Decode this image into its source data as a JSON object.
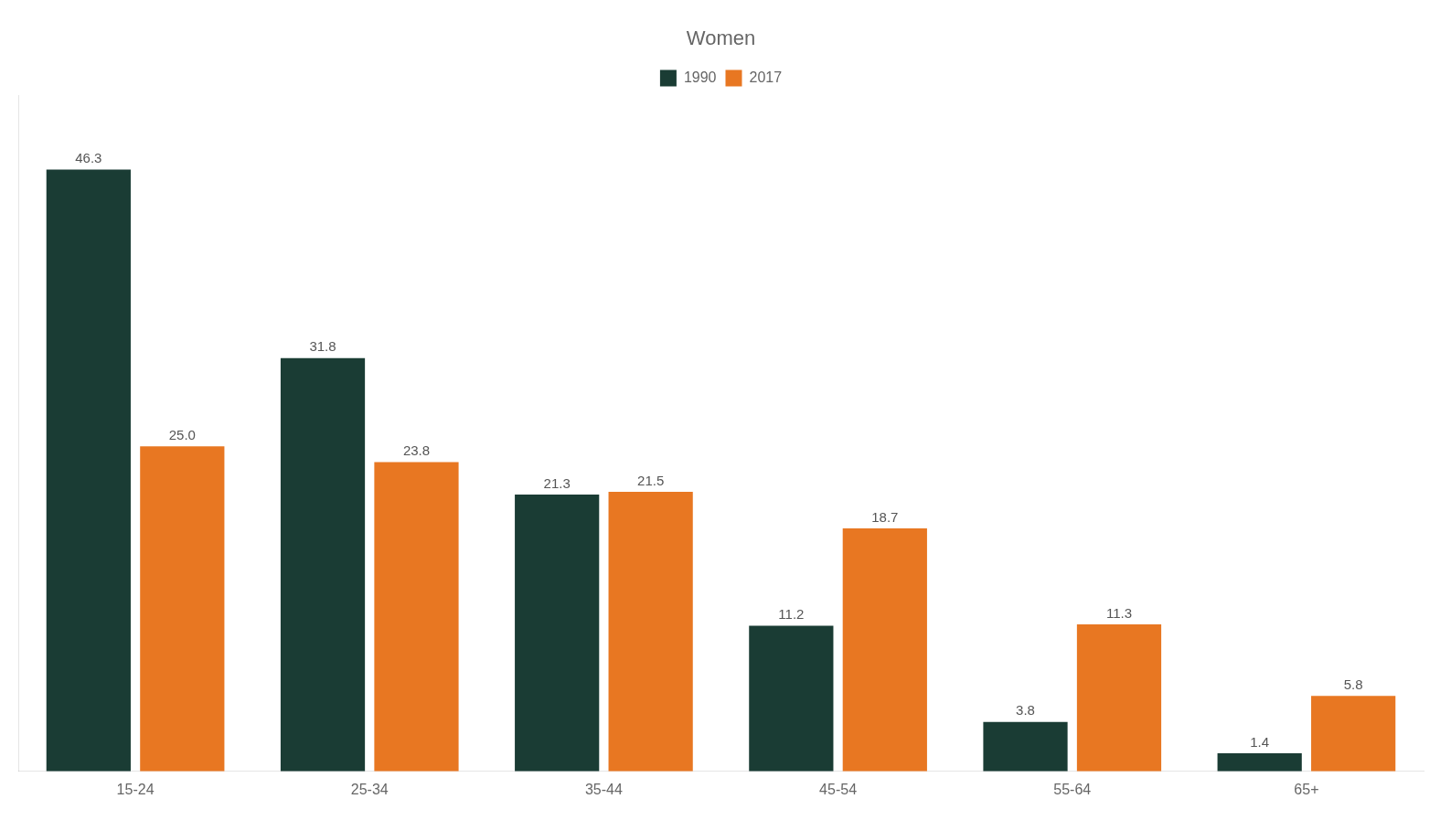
{
  "chart_data": {
    "type": "bar",
    "title": "Women",
    "categories": [
      "15-24",
      "25-34",
      "35-44",
      "45-54",
      "55-64",
      "65+"
    ],
    "series": [
      {
        "name": "1990",
        "color": "#1a3c34",
        "values": [
          46.3,
          31.8,
          21.3,
          11.2,
          3.8,
          1.4
        ],
        "value_labels": [
          "46.3",
          "31.8",
          "21.3",
          "11.2",
          "3.8",
          "1.4"
        ]
      },
      {
        "name": "2017",
        "color": "#e87722",
        "values": [
          25.0,
          23.8,
          21.5,
          18.7,
          11.3,
          5.8
        ],
        "value_labels": [
          "25.0",
          "23.8",
          "21.5",
          "18.7",
          "11.3",
          "5.8"
        ]
      }
    ],
    "ylim": [
      0,
      52
    ],
    "grid": false,
    "legend": "top",
    "data_labels": true,
    "tick_labels": "x"
  }
}
